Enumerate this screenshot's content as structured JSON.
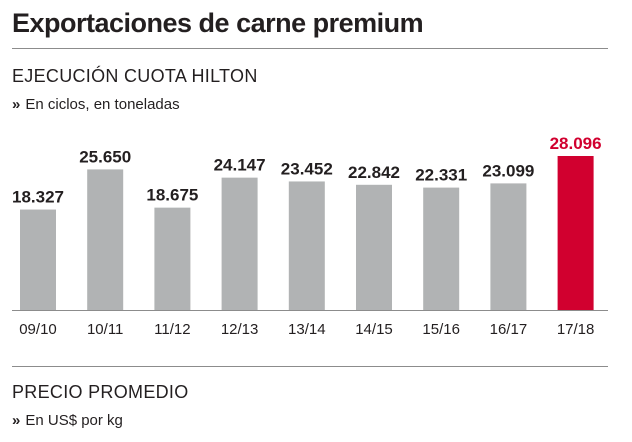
{
  "title": "Exportaciones de carne premium",
  "section1": {
    "title": "EJECUCIÓN CUOTA HILTON",
    "chevron": "»",
    "subtitle": "En ciclos, en toneladas"
  },
  "section2": {
    "title": "PRECIO PROMEDIO",
    "chevron": "»",
    "subtitle": "En US$ por kg"
  },
  "colors": {
    "bar": "#b1b3b4",
    "highlight": "#d1002f",
    "text": "#231f20",
    "axis": "#8c8c8c"
  },
  "chart_data": {
    "type": "bar",
    "title": "EJECUCIÓN CUOTA HILTON",
    "subtitle": "En ciclos, en toneladas",
    "categories": [
      "09/10",
      "10/11",
      "11/12",
      "12/13",
      "13/14",
      "14/15",
      "15/16",
      "16/17",
      "17/18"
    ],
    "values": [
      18327,
      25650,
      18675,
      24147,
      23452,
      22842,
      22331,
      23099,
      28096
    ],
    "value_labels": [
      "18.327",
      "25.650",
      "18.675",
      "24.147",
      "23.452",
      "22.842",
      "22.331",
      "23.099",
      "28.096"
    ],
    "highlight_index": 8,
    "ylim": [
      0,
      28096
    ],
    "grid": false,
    "legend": "none"
  }
}
